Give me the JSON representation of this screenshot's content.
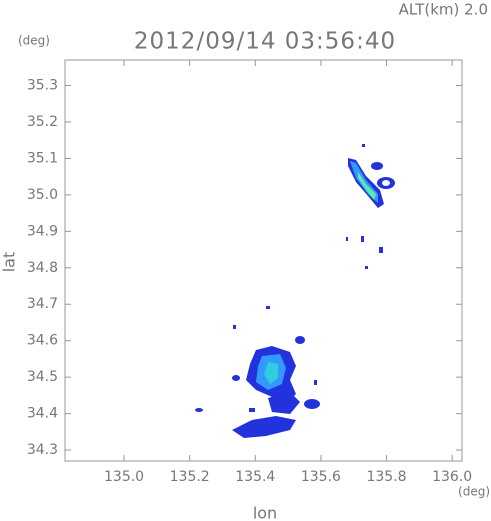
{
  "chart_data": {
    "type": "heatmap",
    "title": "2012/09/14 03:56:40",
    "subtitle": "ALT(km) 2.0",
    "y_unit": "(deg)",
    "x_unit": "(deg)",
    "xlabel": "lon",
    "ylabel": "lat",
    "xlim": [
      134.82,
      136.03
    ],
    "xticks": [
      {
        "value": 135,
        "label": "135.0"
      },
      135.2,
      135.4,
      135.6,
      135.8,
      {
        "value": 136,
        "label": "136.0"
      }
    ],
    "ylim": [
      34.27,
      35.37
    ],
    "yticks": [
      34.3,
      34.4,
      34.5,
      34.6,
      34.7,
      34.8,
      34.9,
      {
        "value": 35,
        "label": "35.0"
      },
      35.1,
      35.2,
      35.3
    ]
  }
}
